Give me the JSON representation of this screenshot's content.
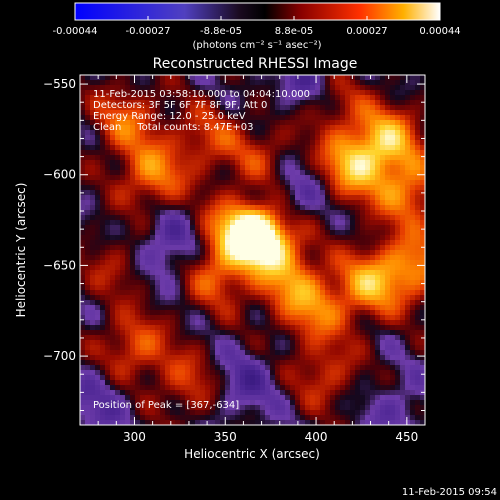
{
  "colorbar": {
    "ticks": [
      "-0.00044",
      "-0.00027",
      "-8.8e-05",
      "8.8e-05",
      "0.00027",
      "0.00044"
    ],
    "unit_label": "(photons cm⁻² s⁻¹ asec⁻²)"
  },
  "title": "Reconstructed RHESSI Image",
  "info": {
    "time_range": "11-Feb-2015 03:58:10.000 to 04:04:10.000",
    "detectors": "Detectors: 3F 5F 6F 7F 8F 9F, Att 0",
    "energy": "Energy Range: 12.0 - 25.0 keV",
    "method_counts": "Clean     Total counts: 8.47E+03",
    "peak": "Position of Peak = [367,-634]"
  },
  "footer_timestamp": "11-Feb-2015 09:54",
  "chart_data": {
    "type": "heatmap",
    "title": "Reconstructed RHESSI Image",
    "xlabel": "Heliocentric X (arcsec)",
    "ylabel": "Heliocentric Y (arcsec)",
    "xlim": [
      270,
      460
    ],
    "ylim": [
      -738,
      -545
    ],
    "x_ticks": [
      300,
      350,
      400,
      450
    ],
    "y_ticks": [
      -550,
      -600,
      -650,
      -700
    ],
    "x_tick_labels": [
      "300",
      "350",
      "400",
      "450"
    ],
    "y_tick_labels": [
      "−550",
      "−600",
      "−650",
      "−700"
    ],
    "colorbar_range": [
      -0.00044,
      0.00044
    ],
    "peak": {
      "x": 367,
      "y": -634
    },
    "sources": [
      {
        "x": 367,
        "y": -634,
        "amp": 1.0
      },
      {
        "x": 355,
        "y": -630,
        "amp": 0.55
      },
      {
        "x": 378,
        "y": -640,
        "amp": 0.45
      },
      {
        "x": 345,
        "y": -655,
        "amp": 0.45
      },
      {
        "x": 310,
        "y": -600,
        "amp": 0.55
      },
      {
        "x": 295,
        "y": -570,
        "amp": 0.45
      },
      {
        "x": 340,
        "y": -580,
        "amp": 0.35
      },
      {
        "x": 420,
        "y": -595,
        "amp": 0.7
      },
      {
        "x": 440,
        "y": -580,
        "amp": 0.65
      },
      {
        "x": 450,
        "y": -610,
        "amp": 0.55
      },
      {
        "x": 410,
        "y": -560,
        "amp": 0.3
      },
      {
        "x": 430,
        "y": -660,
        "amp": 0.65
      },
      {
        "x": 455,
        "y": -650,
        "amp": 0.55
      },
      {
        "x": 400,
        "y": -675,
        "amp": 0.45
      },
      {
        "x": 385,
        "y": -660,
        "amp": 0.4
      },
      {
        "x": 300,
        "y": -695,
        "amp": 0.45
      },
      {
        "x": 330,
        "y": -715,
        "amp": 0.35
      },
      {
        "x": 405,
        "y": -710,
        "amp": 0.35
      },
      {
        "x": 290,
        "y": -650,
        "amp": 0.25
      },
      {
        "x": 370,
        "y": -590,
        "amp": 0.3
      },
      {
        "x": 320,
        "y": -640,
        "amp": -0.35
      },
      {
        "x": 390,
        "y": -610,
        "amp": -0.25
      },
      {
        "x": 360,
        "y": -715,
        "amp": -0.3
      },
      {
        "x": 445,
        "y": -730,
        "amp": -0.2
      },
      {
        "x": 280,
        "y": -725,
        "amp": -0.25
      },
      {
        "x": 395,
        "y": -548,
        "amp": -0.3
      }
    ]
  }
}
